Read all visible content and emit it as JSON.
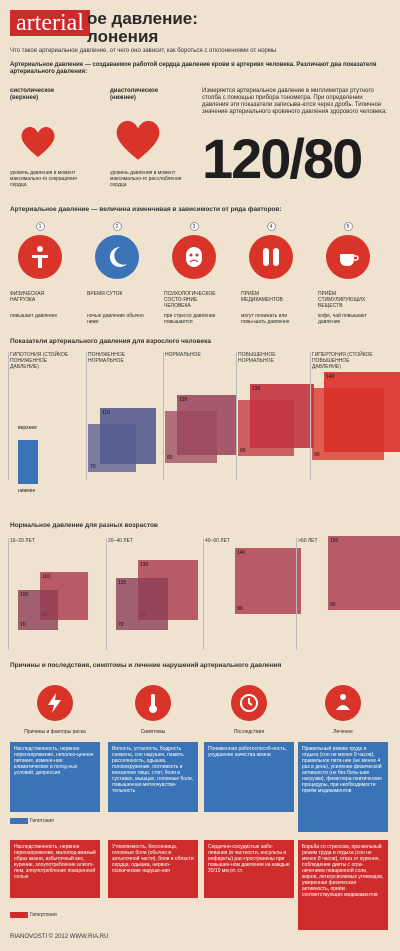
{
  "header": {
    "logo": "arterial",
    "title_line1": "ое давление:",
    "title_line2": "лонения",
    "subtitle": "Что такое артериальное давление, от чего оно зависит,  как бороться с отклонениями от нормы"
  },
  "intro": {
    "text1": "Артериальное давление — создаваемое работой сердца давление крови в артериях человека. Различают два показателя артериального давления:",
    "systolic_title": "систолическое (верхнее)",
    "diastolic_title": "диастолическое (нижнее)",
    "systolic_desc": "уровень давления в момент максимально-го сокращения сердца",
    "diastolic_desc": "уровень давления в момент максимально-го расслабления сердца",
    "measure_text": "Измеряется артериальное давление в миллиметрах ртутного столба с помощью прибора тонометра. При определении давления эти показатели записыва-ются через дробь. Типичное значение артериального кровяного давления здорового человека:",
    "big_value": "120/80"
  },
  "factors": {
    "title": "Артериальное давление — величина изменчивая в зависимости от ряда факторов:",
    "items": [
      {
        "num": "1",
        "label": "ФИЗИЧЕСКАЯ НАГРУЗКА",
        "effect": "повышает давление",
        "color": "#d9342a"
      },
      {
        "num": "2",
        "label": "ВРЕМЯ СУТОК",
        "effect": "ночью давление обычно ниже",
        "color": "#3a74b6"
      },
      {
        "num": "3",
        "label": "ПСИХОЛОГИЧЕСКОЕ СОСТО-ЯНИЕ ЧЕЛОВЕКА",
        "effect": "при стрессе давление повышается",
        "color": "#d9342a"
      },
      {
        "num": "4",
        "label": "ПРИЁМ МЕДИКАМЕНТОВ",
        "effect": "могут понижать или повы-шать давление",
        "color": "#d9342a"
      },
      {
        "num": "5",
        "label": "ПРИЁМ СТИМУЛИРУЮЩИХ ВЕЩЕСТВ",
        "effect": "кофе, чай повышают давление",
        "color": "#d9342a"
      }
    ]
  },
  "adult": {
    "title": "Показатели артериального давления для взрослого человека",
    "columns": [
      {
        "label": "ГИПОТОНИЯ (СТОЙКОЕ ПОНИЖЕННОЕ ДАВЛЕНИЕ)",
        "top": "",
        "bottom": ""
      },
      {
        "label": "ПОНИЖЕННОЕ НОРМАЛЬНОЕ",
        "top": "110",
        "bottom": "70"
      },
      {
        "label": "НОРМАЛЬНОЕ",
        "top": "120",
        "bottom": "80"
      },
      {
        "label": "ПОВЫШЕННОЕ НОРМАЛЬНОЕ",
        "top": "139",
        "bottom": "89"
      },
      {
        "label": "ГИПЕРТОНИЯ (СТОЙКОЕ ПОВЫШЕННОЕ ДАВЛЕНИЕ)",
        "top": "140",
        "bottom": "90"
      }
    ],
    "small_labels": [
      "100",
      "60",
      "верхнее",
      "нижнее"
    ],
    "extra": [
      "65",
      "85",
      "90"
    ]
  },
  "ages": {
    "title": "Нормальное давление для разных возрастов",
    "columns": [
      {
        "label": "16–20 ЛЕТ",
        "top": "110",
        "bottom": "80",
        "top2": "100",
        "bottom2": "70"
      },
      {
        "label": "20–40 ЛЕТ",
        "top": "130",
        "bottom": "85",
        "top2": "120",
        "bottom2": "70"
      },
      {
        "label": "40–60 ЛЕТ",
        "top": "140",
        "bottom": "90"
      },
      {
        "label": ">60 ЛЕТ",
        "top": "150",
        "bottom": "90"
      }
    ]
  },
  "causes": {
    "title": "Причины и последствия, симптомы и лечение нарушений артериального давления",
    "headers": [
      "Причины и факторы риска",
      "Симптомы",
      "Последствия",
      "Лечение"
    ],
    "hypo_label": "Гипотония",
    "hyper_label": "Гипертония",
    "hypo": [
      "Наследственность, нервное перенапряжение, неполно-ценное питание, измене-ние климатических и погод-ных условий, депрессия",
      "Вялость, усталость, бодрость снижена, сон нарушен, память рассеянность, одышка, головокружение, потливость и внезапное лицо, стоп, боли в суставах, мышцах, головные боли, повышенная метеочувстви-тельность",
      "Пониженная работоспособ-ность, ухудшение качества жизни",
      "Правильный режим труда и отдыха (сон не менее 9 часов), правильное пита-ние (не менее 4 раз в день), усиление физической активности (не без боль-шие нагрузки), физиотера-певтические процедуры, при необходимости приём медикаментов"
    ],
    "hyper": [
      "Наследственность, нервное перенапряжение, малопод-вижный образ жизни, избыточный вес, курение, злоупотребление алкого-лем, злоупотребление поваренной солью",
      "Утомляемость, бессонница, головные боли (обычно в затылочной части), боли в области сердца, одышка, нервно-психические наруше-ния",
      "Сердечно-сосудистые забо-левания (в частности, инсульты и инфаркты) рас-пространены при повышен-ном давлении на каждые 20/10 мм рт. ст.",
      "Борьба со стрессом, пра-вильный режим труда и отдыха (сон не менее 8 часов), отказ от курения, соблюдение диеты с огра-ничением поваренной соли, жиров, легкоусвояемых углеводов, умеренная физическая активность, приём соответствующих медикаментов"
    ]
  },
  "footer": {
    "text": "RIANOVOSTI © 2012  WWW.RIA.RU"
  }
}
